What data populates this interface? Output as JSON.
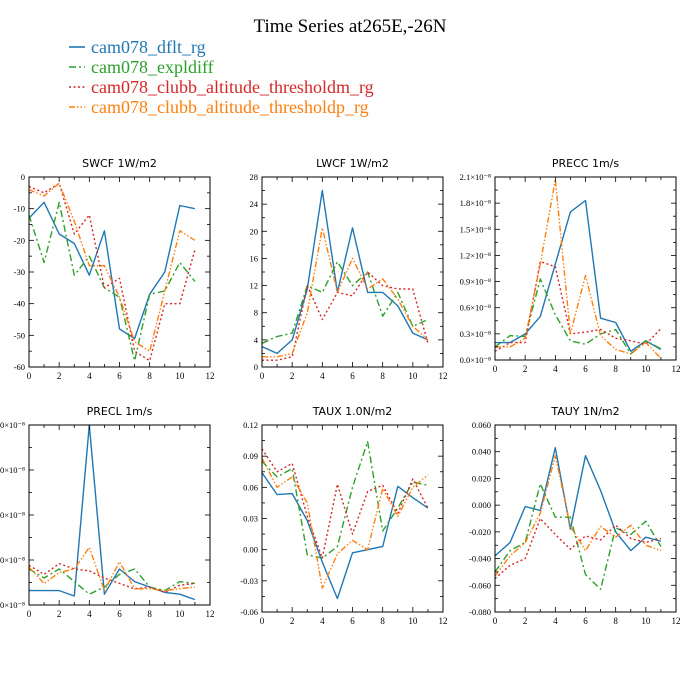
{
  "figure": {
    "title": "Time Series at265E,-26N",
    "legend": [
      {
        "name": "cam078_dflt_rg",
        "color": "#1f77b4",
        "dash": "solid"
      },
      {
        "name": "cam078_expldiff",
        "color": "#2ca02c",
        "dash": "dashdot"
      },
      {
        "name": "cam078_clubb_altitude_thresholdm_rg",
        "color": "#d62728",
        "dash": "dot"
      },
      {
        "name": "cam078_clubb_altitude_thresholdp_rg",
        "color": "#ff7f0e",
        "dash": "dashdotdot"
      }
    ]
  },
  "chart_data": [
    {
      "type": "line",
      "title": "SWCF  1W/m2",
      "x": [
        0,
        1,
        2,
        3,
        4,
        5,
        6,
        7,
        8,
        9,
        10,
        11
      ],
      "xlim": [
        0,
        12
      ],
      "xticks": [
        0,
        2,
        4,
        6,
        8,
        10,
        12
      ],
      "xticklabels": [
        "0",
        "2",
        "4",
        "6",
        "8",
        "10",
        "12"
      ],
      "ylim": [
        -60,
        0
      ],
      "yticks": [
        -60,
        -50,
        -40,
        -30,
        -20,
        -10,
        0
      ],
      "yticklabels": [
        "-60",
        "-50",
        "-40",
        "-30",
        "-20",
        "-10",
        "0"
      ],
      "series": [
        {
          "name": "cam078_dflt_rg",
          "values": [
            -13,
            -8,
            -18,
            -21,
            -31,
            -17,
            -48,
            -51,
            -37,
            -30,
            -9,
            -10
          ]
        },
        {
          "name": "cam078_expldiff",
          "values": [
            -12,
            -27,
            -8,
            -31,
            -25,
            -35,
            -38,
            -58,
            -37,
            -36,
            -27,
            -33
          ]
        },
        {
          "name": "cam078_clubb_altitude_thresholdm_rg",
          "values": [
            -3,
            -5,
            -2,
            -18,
            -12,
            -35,
            -32,
            -55,
            -58,
            -40,
            -40,
            -23
          ]
        },
        {
          "name": "cam078_clubb_altitude_thresholdp_rg",
          "values": [
            -4,
            -6,
            -2,
            -14,
            -28,
            -28,
            -38,
            -52,
            -55,
            -36,
            -17,
            -20
          ]
        }
      ]
    },
    {
      "type": "line",
      "title": "LWCF  1W/m2",
      "x": [
        0,
        1,
        2,
        3,
        4,
        5,
        6,
        7,
        8,
        9,
        10,
        11
      ],
      "xlim": [
        0,
        12
      ],
      "xticks": [
        0,
        2,
        4,
        6,
        8,
        10,
        12
      ],
      "xticklabels": [
        "0",
        "2",
        "4",
        "6",
        "8",
        "10",
        "12"
      ],
      "ylim": [
        0,
        28
      ],
      "yticks": [
        0,
        4,
        8,
        12,
        16,
        20,
        24,
        28
      ],
      "yticklabels": [
        "0",
        "4",
        "8",
        "12",
        "16",
        "20",
        "24",
        "28"
      ],
      "series": [
        {
          "name": "cam078_dflt_rg",
          "values": [
            3,
            2,
            4,
            11.5,
            26,
            11,
            20.5,
            11,
            11,
            9,
            5,
            4
          ]
        },
        {
          "name": "cam078_expldiff",
          "values": [
            3.5,
            4.5,
            5,
            12,
            11,
            15.5,
            12,
            14,
            7.5,
            11,
            6,
            7
          ]
        },
        {
          "name": "cam078_clubb_altitude_thresholdm_rg",
          "values": [
            1,
            1,
            1.5,
            12,
            7,
            11,
            10.5,
            14,
            12,
            11.5,
            11.5,
            3.5
          ]
        },
        {
          "name": "cam078_clubb_altitude_thresholdp_rg",
          "values": [
            1.5,
            1.5,
            2,
            8,
            20.5,
            11,
            16,
            11.5,
            13,
            10,
            6,
            4
          ]
        }
      ]
    },
    {
      "type": "line",
      "title": "PRECC  1m/s",
      "x": [
        0,
        1,
        2,
        3,
        4,
        5,
        6,
        7,
        8,
        9,
        10,
        11
      ],
      "xlim": [
        0,
        12
      ],
      "xticks": [
        0,
        2,
        4,
        6,
        8,
        10,
        12
      ],
      "xticklabels": [
        "0",
        "2",
        "4",
        "6",
        "8",
        "10",
        "12"
      ],
      "ylim": [
        0,
        2.1
      ],
      "yticks": [
        0,
        0.3,
        0.6,
        0.9,
        1.2,
        1.5,
        1.8,
        2.1
      ],
      "yticklabels": [
        "0.0×10⁻⁸",
        "0.3×10⁻⁸",
        "0.6×10⁻⁸",
        "0.9×10⁻⁸",
        "1.2×10⁻⁸",
        "1.5×10⁻⁸",
        "1.8×10⁻⁸",
        "2.1×10⁻⁸"
      ],
      "yunit": "1e-8 m/s",
      "series": [
        {
          "name": "cam078_dflt_rg",
          "values": [
            0.2,
            0.2,
            0.3,
            0.5,
            1.1,
            1.7,
            1.83,
            0.48,
            0.43,
            0.1,
            0.22,
            0.12
          ]
        },
        {
          "name": "cam078_expldiff",
          "values": [
            0.15,
            0.28,
            0.27,
            0.93,
            0.52,
            0.22,
            0.18,
            0.3,
            0.35,
            0.07,
            0.22,
            0.13
          ]
        },
        {
          "name": "cam078_clubb_altitude_thresholdm_rg",
          "values": [
            0.1,
            0.2,
            0.2,
            1.13,
            1.07,
            0.3,
            0.32,
            0.35,
            0.25,
            0.22,
            0.18,
            0.36
          ]
        },
        {
          "name": "cam078_clubb_altitude_thresholdp_rg",
          "values": [
            0.15,
            0.15,
            0.25,
            1.1,
            2.07,
            0.3,
            0.97,
            0.28,
            0.12,
            0.07,
            0.2,
            0.02
          ]
        }
      ]
    },
    {
      "type": "line",
      "title": "PRECL  1m/s",
      "x": [
        0,
        1,
        2,
        3,
        4,
        5,
        6,
        7,
        8,
        9,
        10,
        11
      ],
      "xlim": [
        0,
        12
      ],
      "xticks": [
        0,
        2,
        4,
        6,
        8,
        10,
        12
      ],
      "xticklabels": [
        "0",
        "2",
        "4",
        "6",
        "8",
        "10",
        "12"
      ],
      "ylim": [
        0,
        1
      ],
      "yticks": [
        0,
        0.25,
        0.5,
        0.75,
        1
      ],
      "yticklabels": [
        "0×10⁻⁸",
        "0×10⁻⁸",
        "0×10⁻⁸",
        "0×10⁻⁸",
        "0×10⁻⁸"
      ],
      "yunit": "relative",
      "series": [
        {
          "name": "cam078_dflt_rg",
          "values": [
            0.08,
            0.08,
            0.08,
            0.05,
            1.0,
            0.06,
            0.2,
            0.13,
            0.1,
            0.07,
            0.06,
            0.03
          ]
        },
        {
          "name": "cam078_expldiff",
          "values": [
            0.2,
            0.15,
            0.2,
            0.13,
            0.06,
            0.1,
            0.17,
            0.2,
            0.1,
            0.08,
            0.13,
            0.12
          ]
        },
        {
          "name": "cam078_clubb_altitude_thresholdm_rg",
          "values": [
            0.22,
            0.17,
            0.23,
            0.2,
            0.19,
            0.15,
            0.12,
            0.09,
            0.1,
            0.07,
            0.11,
            0.12
          ]
        },
        {
          "name": "cam078_clubb_altitude_thresholdp_rg",
          "values": [
            0.21,
            0.12,
            0.18,
            0.2,
            0.32,
            0.08,
            0.24,
            0.09,
            0.09,
            0.08,
            0.09,
            0.1
          ]
        }
      ]
    },
    {
      "type": "line",
      "title": "TAUX  1.0N/m2",
      "x": [
        0,
        1,
        2,
        3,
        4,
        5,
        6,
        7,
        8,
        9,
        10,
        11
      ],
      "xlim": [
        0,
        12
      ],
      "xticks": [
        0,
        2,
        4,
        6,
        8,
        10,
        12
      ],
      "xticklabels": [
        "0",
        "2",
        "4",
        "6",
        "8",
        "10",
        "12"
      ],
      "ylim": [
        -0.06,
        0.12
      ],
      "yticks": [
        -0.06,
        -0.03,
        0,
        0.03,
        0.06,
        0.09,
        0.12
      ],
      "yticklabels": [
        "-0.06",
        "-0.03",
        "0.00",
        "0.03",
        "0.06",
        "0.09",
        "0.12"
      ],
      "series": [
        {
          "name": "cam078_dflt_rg",
          "values": [
            0.074,
            0.053,
            0.054,
            0.028,
            -0.012,
            -0.047,
            -0.003,
            0.0,
            0.003,
            0.061,
            0.05,
            0.04
          ]
        },
        {
          "name": "cam078_expldiff",
          "values": [
            0.085,
            0.07,
            0.078,
            -0.005,
            -0.008,
            0.003,
            0.06,
            0.104,
            0.018,
            0.04,
            0.065,
            0.062
          ]
        },
        {
          "name": "cam078_clubb_altitude_thresholdm_rg",
          "values": [
            0.097,
            0.075,
            0.083,
            0.032,
            -0.008,
            0.063,
            0.015,
            0.056,
            0.062,
            0.035,
            0.068,
            0.04
          ]
        },
        {
          "name": "cam078_clubb_altitude_thresholdp_rg",
          "values": [
            0.088,
            0.06,
            0.07,
            0.045,
            -0.037,
            -0.004,
            0.009,
            0.0,
            0.059,
            0.032,
            0.06,
            0.072
          ]
        }
      ]
    },
    {
      "type": "line",
      "title": "TAUY  1N/m2",
      "x": [
        0,
        1,
        2,
        3,
        4,
        5,
        6,
        7,
        8,
        9,
        10,
        11
      ],
      "xlim": [
        0,
        12
      ],
      "xticks": [
        0,
        2,
        4,
        6,
        8,
        10,
        12
      ],
      "xticklabels": [
        "0",
        "2",
        "4",
        "6",
        "8",
        "10",
        "12"
      ],
      "ylim": [
        -0.08,
        0.06
      ],
      "yticks": [
        -0.08,
        -0.06,
        -0.04,
        -0.02,
        0,
        0.02,
        0.04,
        0.06
      ],
      "yticklabels": [
        "-0.080",
        "-0.060",
        "-0.040",
        "-0.020",
        "0.000",
        "0.020",
        "0.040",
        "0.060"
      ],
      "series": [
        {
          "name": "cam078_dflt_rg",
          "values": [
            -0.038,
            -0.028,
            -0.001,
            -0.004,
            0.043,
            -0.018,
            0.037,
            0.011,
            -0.02,
            -0.034,
            -0.024,
            -0.027
          ]
        },
        {
          "name": "cam078_expldiff",
          "values": [
            -0.05,
            -0.034,
            -0.028,
            0.016,
            -0.009,
            -0.009,
            -0.052,
            -0.063,
            -0.017,
            -0.022,
            -0.012,
            -0.031
          ]
        },
        {
          "name": "cam078_clubb_altitude_thresholdm_rg",
          "values": [
            -0.055,
            -0.045,
            -0.04,
            -0.01,
            -0.022,
            -0.033,
            -0.023,
            -0.026,
            -0.015,
            -0.025,
            -0.028,
            -0.025
          ]
        },
        {
          "name": "cam078_clubb_altitude_thresholdp_rg",
          "values": [
            -0.053,
            -0.038,
            -0.028,
            -0.006,
            0.037,
            -0.016,
            -0.034,
            -0.016,
            -0.024,
            -0.015,
            -0.03,
            -0.034
          ]
        }
      ]
    }
  ]
}
